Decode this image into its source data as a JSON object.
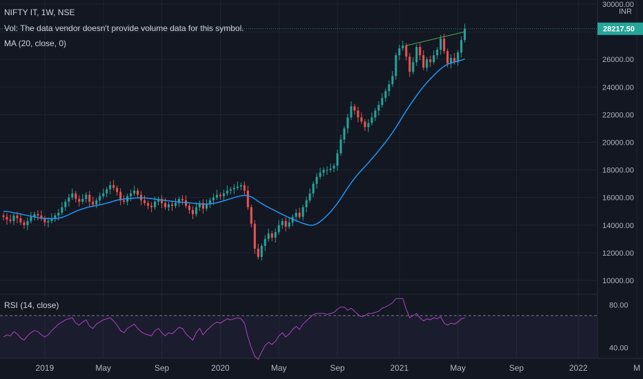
{
  "legend": {
    "title": "NIFTY IT, 1W, NSE",
    "vol": "Vol: The data vendor doesn't provide volume data for this symbol.",
    "ma": "MA (20, close, 0)",
    "rsi": "RSI (14, close)"
  },
  "currency": "INR",
  "colors": {
    "up": "#26a69a",
    "down": "#ef5350",
    "ma": "#2196f3",
    "rsi": "#ab47bc",
    "trendline": "#4caf50",
    "background": "#131722",
    "grid": "#1f2430"
  },
  "chart_data": {
    "type": "candlestick",
    "price_axis": {
      "range": [
        9000,
        30300
      ],
      "ticks": [
        "10000.00",
        "12000.00",
        "14000.00",
        "16000.00",
        "18000.00",
        "20000.00",
        "22000.00",
        "24000.00",
        "26000.00",
        "28000.00",
        "30000.00"
      ],
      "last_price_label": "28217.50",
      "last_price": 28217.5
    },
    "time_axis": {
      "labels": [
        {
          "text": "2019",
          "week": 12
        },
        {
          "text": "May",
          "week": 29
        },
        {
          "text": "Sep",
          "week": 46
        },
        {
          "text": "2020",
          "week": 63
        },
        {
          "text": "May",
          "week": 80
        },
        {
          "text": "Sep",
          "week": 97
        },
        {
          "text": "2021",
          "week": 115
        },
        {
          "text": "May",
          "week": 132
        },
        {
          "text": "Sep",
          "week": 149
        },
        {
          "text": "2022",
          "week": 167
        },
        {
          "text": "M",
          "week": 184
        }
      ]
    },
    "closes": [
      14600,
      14400,
      14300,
      14700,
      14500,
      14200,
      14000,
      14300,
      14600,
      14800,
      14700,
      14500,
      14200,
      14300,
      14500,
      14700,
      14900,
      15300,
      15700,
      16000,
      16300,
      15900,
      15700,
      15900,
      16200,
      15700,
      15500,
      15800,
      16100,
      16300,
      16600,
      16900,
      16700,
      16400,
      15800,
      15700,
      16100,
      16300,
      16500,
      16200,
      15800,
      15600,
      15400,
      15300,
      15700,
      15900,
      15600,
      15300,
      15500,
      15400,
      15600,
      15900,
      15800,
      15400,
      15100,
      14800,
      15300,
      15600,
      15200,
      15500,
      15800,
      16000,
      16200,
      16100,
      16300,
      16500,
      16600,
      16700,
      16800,
      16900,
      16500,
      15300,
      14100,
      12300,
      11700,
      12500,
      13000,
      13400,
      13100,
      13500,
      14000,
      14300,
      13900,
      14200,
      14600,
      14900,
      14600,
      15300,
      15800,
      16300,
      17000,
      17500,
      17800,
      18000,
      18000,
      18100,
      18300,
      19200,
      20200,
      21000,
      21800,
      22600,
      22300,
      21800,
      21500,
      21100,
      21400,
      21800,
      22300,
      22700,
      23200,
      23700,
      24200,
      24800,
      26300,
      26800,
      27000,
      26200,
      25100,
      25800,
      26900,
      26300,
      25400,
      26000,
      25800,
      26300,
      26700,
      27500,
      26600,
      25700,
      26100,
      25800,
      26500,
      27400,
      28217.5
    ],
    "opens": [
      14700,
      14600,
      14400,
      14300,
      14700,
      14500,
      14200,
      14000,
      14300,
      14600,
      14800,
      14700,
      14500,
      14200,
      14300,
      14500,
      14700,
      14900,
      15300,
      15700,
      16000,
      16300,
      15900,
      15700,
      15900,
      16200,
      15700,
      15500,
      15800,
      16100,
      16300,
      16600,
      16900,
      16700,
      16400,
      15800,
      15700,
      16100,
      16300,
      16500,
      16200,
      15800,
      15600,
      15400,
      15300,
      15700,
      15900,
      15600,
      15300,
      15500,
      15400,
      15600,
      15900,
      15800,
      15400,
      15100,
      14800,
      15300,
      15600,
      15200,
      15500,
      15800,
      16000,
      16200,
      16100,
      16300,
      16500,
      16600,
      16700,
      16800,
      16900,
      16500,
      15300,
      14100,
      12300,
      11700,
      12500,
      13000,
      13400,
      13100,
      13500,
      14000,
      14300,
      13900,
      14200,
      14600,
      14900,
      14600,
      15300,
      15800,
      16300,
      17000,
      17500,
      17800,
      18000,
      18000,
      18100,
      18300,
      19200,
      20200,
      21000,
      21800,
      22600,
      22300,
      21800,
      21500,
      21100,
      21400,
      21800,
      22300,
      22700,
      23200,
      23700,
      24200,
      24800,
      26300,
      26800,
      27000,
      26200,
      25100,
      25800,
      26900,
      26300,
      25400,
      26000,
      25800,
      26300,
      26700,
      27500,
      26600,
      25700,
      26100,
      25800,
      26500,
      27400
    ],
    "ma_values": [
      15000,
      15000,
      14950,
      14900,
      14850,
      14800,
      14750,
      14700,
      14650,
      14600,
      14550,
      14500,
      14500,
      14480,
      14470,
      14470,
      14500,
      14560,
      14650,
      14760,
      14880,
      15000,
      15100,
      15180,
      15260,
      15330,
      15380,
      15420,
      15470,
      15530,
      15590,
      15660,
      15740,
      15810,
      15860,
      15890,
      15920,
      15940,
      15960,
      15970,
      15980,
      15970,
      15950,
      15920,
      15890,
      15850,
      15820,
      15790,
      15760,
      15730,
      15700,
      15680,
      15660,
      15640,
      15620,
      15590,
      15560,
      15540,
      15530,
      15530,
      15550,
      15580,
      15630,
      15690,
      15760,
      15840,
      15920,
      16000,
      16070,
      16130,
      16160,
      16130,
      16050,
      15900,
      15720,
      15560,
      15420,
      15290,
      15160,
      15030,
      14900,
      14780,
      14660,
      14540,
      14430,
      14330,
      14230,
      14140,
      14060,
      14000,
      14000,
      14100,
      14260,
      14460,
      14700,
      14960,
      15250,
      15580,
      15940,
      16320,
      16700,
      17060,
      17400,
      17700,
      17980,
      18250,
      18520,
      18800,
      19090,
      19390,
      19700,
      20020,
      20350,
      20700,
      21080,
      21480,
      21880,
      22280,
      22660,
      23020,
      23380,
      23720,
      24030,
      24320,
      24600,
      24850,
      25090,
      25310,
      25500,
      25650,
      25740,
      25810,
      25870,
      25940,
      26030
    ],
    "rsi": {
      "range": [
        30,
        90
      ],
      "ticks": [
        "40.00",
        "80.00"
      ],
      "overbought": 70,
      "oversold": 30,
      "values": [
        50,
        52,
        51,
        55,
        53,
        49,
        47,
        51,
        54,
        56,
        55,
        52,
        50,
        52,
        56,
        59,
        62,
        64,
        66,
        67,
        68,
        63,
        61,
        64,
        66,
        60,
        58,
        62,
        64,
        66,
        67,
        68,
        65,
        61,
        56,
        54,
        58,
        60,
        62,
        58,
        55,
        53,
        52,
        51,
        56,
        58,
        54,
        51,
        54,
        53,
        56,
        59,
        58,
        53,
        50,
        47,
        54,
        58,
        52,
        56,
        59,
        62,
        64,
        63,
        65,
        67,
        66,
        67,
        68,
        67,
        63,
        50,
        40,
        32,
        29,
        36,
        42,
        45,
        43,
        46,
        51,
        54,
        50,
        53,
        57,
        60,
        57,
        62,
        65,
        68,
        71,
        72,
        72,
        72,
        71,
        72,
        73,
        76,
        78,
        78,
        75,
        77,
        74,
        71,
        69,
        70,
        72,
        72,
        73,
        74,
        77,
        78,
        80,
        82,
        86,
        86,
        86,
        76,
        68,
        70,
        72,
        68,
        65,
        67,
        66,
        68,
        67,
        69,
        63,
        61,
        63,
        62,
        64,
        67,
        68
      ]
    },
    "trendline": {
      "from": {
        "week": 117,
        "price": 27000
      },
      "to": {
        "week": 134,
        "price": 28000
      }
    }
  }
}
